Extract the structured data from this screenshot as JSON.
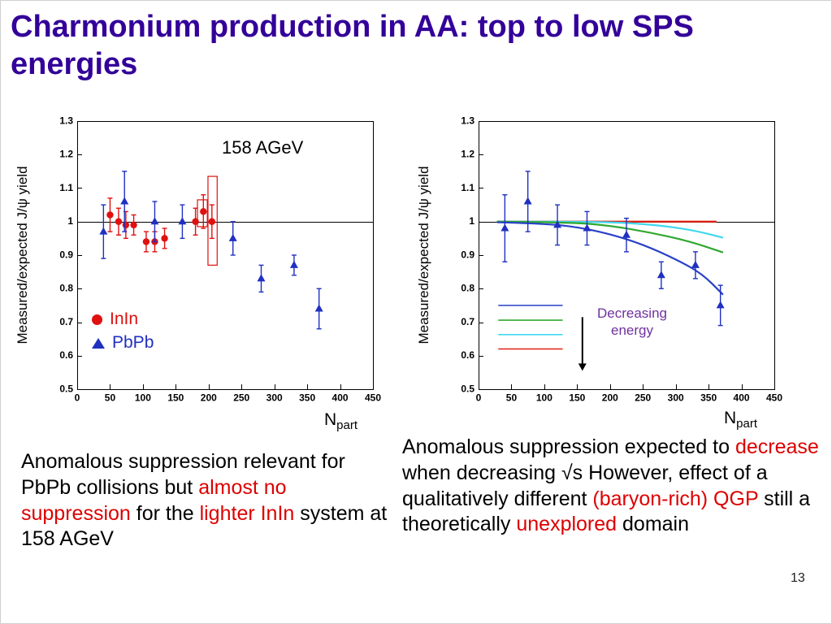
{
  "slide": {
    "title": "Charmonium production in AA: top to low SPS energies",
    "title_lines": [
      "Charmonium production in AA: top to low SPS",
      "energies"
    ],
    "title_color": "#330099",
    "page_number": "13"
  },
  "captions": {
    "left": {
      "segments": [
        {
          "text": "Anomalous suppression relevant for PbPb collisions but ",
          "color": "#000000"
        },
        {
          "text": "almost no suppression",
          "color": "#dd0000"
        },
        {
          "text": " for the ",
          "color": "#000000"
        },
        {
          "text": "lighter InIn",
          "color": "#dd0000"
        },
        {
          "text": " system at 158 AGeV",
          "color": "#000000"
        }
      ]
    },
    "right": {
      "segments": [
        {
          "text": "Anomalous suppression expected to ",
          "color": "#000000"
        },
        {
          "text": "decrease",
          "color": "#dd0000"
        },
        {
          "text": " when decreasing √s However, effect of a qualitatively different ",
          "color": "#000000"
        },
        {
          "text": "(baryon-rich) QGP",
          "color": "#dd0000"
        },
        {
          "text": " still a theoretically ",
          "color": "#000000"
        },
        {
          "text": "unexplored",
          "color": "#dd0000"
        },
        {
          "text": " domain",
          "color": "#000000"
        }
      ]
    }
  },
  "chart_data": [
    {
      "type": "scatter",
      "title": "158 AGeV",
      "ylabel": "Measured/expected J/ψ yield",
      "xlabel": "N_part",
      "xlabel_main": "N",
      "xlabel_sub": "part",
      "xlim": [
        0,
        450
      ],
      "ylim": [
        0.5,
        1.3
      ],
      "xticks": [
        0,
        50,
        100,
        150,
        200,
        250,
        300,
        350,
        400,
        450
      ],
      "xtick_labels": [
        "0",
        "50",
        "100",
        "150",
        "200",
        "250",
        "300",
        "350",
        "400",
        "450"
      ],
      "yticks": [
        0.5,
        0.6,
        0.7,
        0.8,
        0.9,
        1,
        1.1,
        1.2,
        1.3
      ],
      "ytick_labels": [
        "0.5",
        "0.6",
        "0.7",
        "0.8",
        "0.9",
        "1",
        "1.1",
        "1.2",
        "1.3"
      ],
      "reference_line_y": 1,
      "grid": false,
      "legend_position": "inside lower-left",
      "series": [
        {
          "name": "InIn",
          "marker": "circle",
          "color": "#e01010",
          "points": [
            [
              50,
              1.02,
              0.05
            ],
            [
              63,
              1.0,
              0.04
            ],
            [
              74,
              0.99,
              0.04
            ],
            [
              86,
              0.99,
              0.03
            ],
            [
              105,
              0.94,
              0.03
            ],
            [
              118,
              0.94,
              0.03
            ],
            [
              133,
              0.95,
              0.03
            ],
            [
              180,
              1.0,
              0.04
            ],
            [
              192,
              1.03,
              0.05
            ],
            [
              205,
              1.0,
              0.05
            ]
          ]
        },
        {
          "name": "PbPb",
          "marker": "triangle",
          "color": "#2030c0",
          "points": [
            [
              40,
              0.97,
              0.08
            ],
            [
              72,
              1.06,
              0.09
            ],
            [
              118,
              1.0,
              0.06
            ],
            [
              160,
              1.0,
              0.05
            ],
            [
              237,
              0.95,
              0.05
            ],
            [
              280,
              0.83,
              0.04
            ],
            [
              330,
              0.87,
              0.03
            ],
            [
              368,
              0.74,
              0.06
            ]
          ]
        }
      ],
      "syst_box_color": "#e01010",
      "syst_boxes": [
        {
          "x1": 183,
          "x2": 198,
          "y1": 0.985,
          "y2": 1.065
        },
        {
          "x1": 199,
          "x2": 213,
          "y1": 0.87,
          "y2": 1.135
        }
      ]
    },
    {
      "type": "scatter",
      "title": "",
      "ylabel": "Measured/expected J/ψ yield",
      "xlabel": "N_part",
      "xlabel_main": "N",
      "xlabel_sub": "part",
      "xlim": [
        0,
        450
      ],
      "ylim": [
        0.5,
        1.3
      ],
      "xticks": [
        0,
        50,
        100,
        150,
        200,
        250,
        300,
        350,
        400,
        450
      ],
      "xtick_labels": [
        "0",
        "50",
        "100",
        "150",
        "200",
        "250",
        "300",
        "350",
        "400",
        "450"
      ],
      "yticks": [
        0.5,
        0.6,
        0.7,
        0.8,
        0.9,
        1,
        1.1,
        1.2,
        1.3
      ],
      "ytick_labels": [
        "0.5",
        "0.6",
        "0.7",
        "0.8",
        "0.9",
        "1",
        "1.1",
        "1.2",
        "1.3"
      ],
      "reference_line_y": 1,
      "grid": false,
      "series": [
        {
          "name": "PbPb",
          "marker": "triangle",
          "color": "#2030c0",
          "points": [
            [
              40,
              0.98,
              0.1
            ],
            [
              75,
              1.06,
              0.09
            ],
            [
              120,
              0.99,
              0.06
            ],
            [
              165,
              0.98,
              0.05
            ],
            [
              225,
              0.96,
              0.05
            ],
            [
              278,
              0.84,
              0.04
            ],
            [
              330,
              0.87,
              0.04
            ],
            [
              368,
              0.75,
              0.06
            ]
          ]
        }
      ],
      "curves": [
        {
          "color": "#e02010",
          "points": [
            [
              28,
              1.0
            ],
            [
              362,
              1.0
            ]
          ]
        },
        {
          "color": "#40d8ee",
          "points": [
            [
              28,
              1.0
            ],
            [
              150,
              1.0
            ],
            [
              220,
              0.997
            ],
            [
              280,
              0.988
            ],
            [
              330,
              0.973
            ],
            [
              372,
              0.952
            ]
          ]
        },
        {
          "color": "#30a830",
          "points": [
            [
              28,
              1.0
            ],
            [
              140,
              0.998
            ],
            [
              200,
              0.988
            ],
            [
              260,
              0.968
            ],
            [
              320,
              0.942
            ],
            [
              372,
              0.908
            ]
          ]
        },
        {
          "color": "#2840c8",
          "points": [
            [
              28,
              0.998
            ],
            [
              100,
              0.994
            ],
            [
              150,
              0.984
            ],
            [
              200,
              0.963
            ],
            [
              250,
              0.932
            ],
            [
              300,
              0.888
            ],
            [
              340,
              0.845
            ],
            [
              372,
              0.782
            ]
          ]
        }
      ],
      "legend_lines": [
        {
          "color": "#2840c8",
          "x1": 30,
          "x2": 128,
          "y": 0.75
        },
        {
          "color": "#30a830",
          "x1": 30,
          "x2": 128,
          "y": 0.706
        },
        {
          "color": "#40d8ee",
          "x1": 30,
          "x2": 128,
          "y": 0.663
        },
        {
          "color": "#e02010",
          "x1": 30,
          "x2": 128,
          "y": 0.62
        }
      ],
      "arrow": {
        "x": 158,
        "y1": 0.715,
        "y2": 0.555
      },
      "annotation": {
        "text": "Decreasing energy",
        "color": "#7030a0"
      }
    }
  ]
}
